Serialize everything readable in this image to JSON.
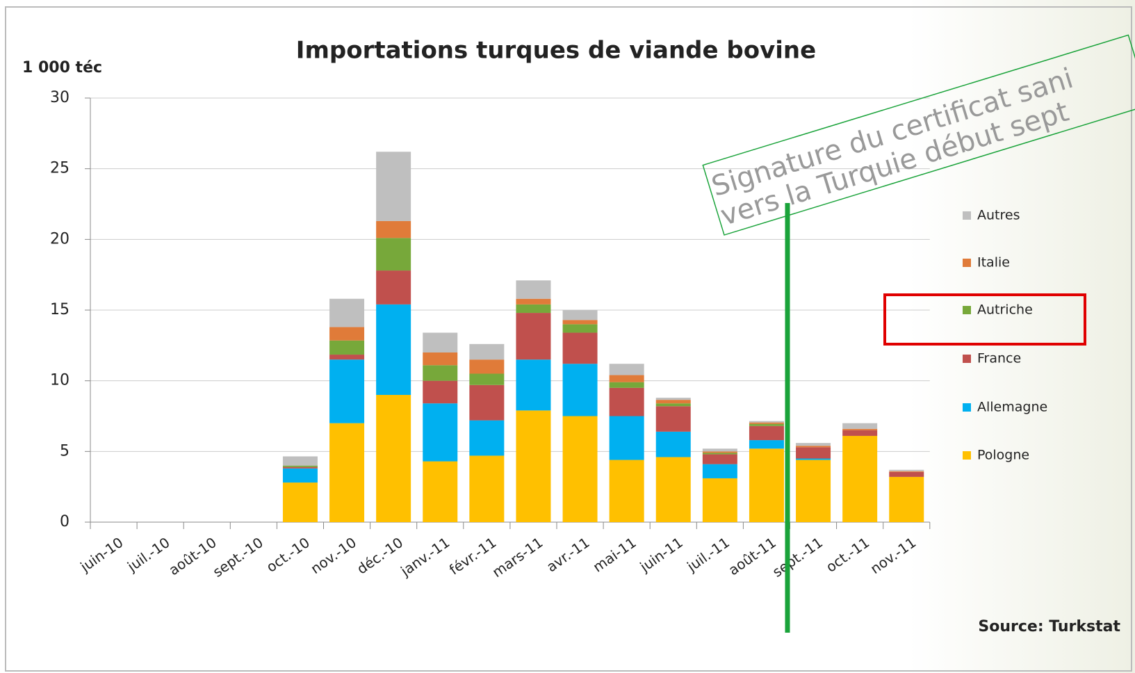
{
  "chart_data": {
    "type": "stacked_bar",
    "title": "Importations turques de viande bovine",
    "y_label": "1 000 téc",
    "source": "Source: Turkstat",
    "annotation": [
      "Signature du certificat sani",
      "vers la Turquie début sept"
    ],
    "categories": [
      "juin-10",
      "juil.-10",
      "août-10",
      "sept.-10",
      "oct.-10",
      "nov.-10",
      "déc.-10",
      "janv.-11",
      "févr.-11",
      "mars-11",
      "avr.-11",
      "mai-11",
      "juin-11",
      "juil.-11",
      "août-11",
      "sept.-11",
      "oct.-11",
      "nov.-11"
    ],
    "series": [
      {
        "name": "Pologne",
        "color": "#ffc000",
        "values": [
          0,
          0,
          0,
          0,
          2.8,
          7.0,
          9.0,
          4.3,
          4.7,
          7.9,
          7.5,
          4.4,
          4.6,
          3.1,
          5.2,
          4.4,
          6.1,
          3.2
        ]
      },
      {
        "name": "Allemagne",
        "color": "#00b0f0",
        "values": [
          0,
          0,
          0,
          0,
          1.0,
          4.5,
          6.4,
          4.1,
          2.5,
          3.6,
          3.7,
          3.1,
          1.8,
          1.0,
          0.6,
          0.1,
          0,
          0
        ]
      },
      {
        "name": "France",
        "color": "#c0504d",
        "values": [
          0,
          0,
          0,
          0,
          0.1,
          0.35,
          2.4,
          1.6,
          2.5,
          3.3,
          2.2,
          2.0,
          1.8,
          0.7,
          1.0,
          0.8,
          0.4,
          0.35
        ]
      },
      {
        "name": "Autriche",
        "color": "#77a83a",
        "values": [
          0,
          0,
          0,
          0,
          0.1,
          1.0,
          2.3,
          1.1,
          0.8,
          0.6,
          0.6,
          0.4,
          0.2,
          0.1,
          0.15,
          0,
          0,
          0
        ]
      },
      {
        "name": "Italie",
        "color": "#e07b39",
        "values": [
          0,
          0,
          0,
          0,
          0,
          0.95,
          1.2,
          0.9,
          1.0,
          0.4,
          0.3,
          0.5,
          0.25,
          0.1,
          0.1,
          0.1,
          0.1,
          0.05
        ]
      },
      {
        "name": "Autres",
        "color": "#bfbfbf",
        "values": [
          0,
          0,
          0,
          0,
          0.65,
          2.0,
          4.9,
          1.4,
          1.1,
          1.3,
          0.7,
          0.8,
          0.15,
          0.2,
          0.1,
          0.2,
          0.4,
          0.1
        ]
      }
    ],
    "ylim": [
      0,
      30
    ],
    "yticks": [
      0,
      5,
      10,
      15,
      20,
      25,
      30
    ],
    "grid": true
  }
}
